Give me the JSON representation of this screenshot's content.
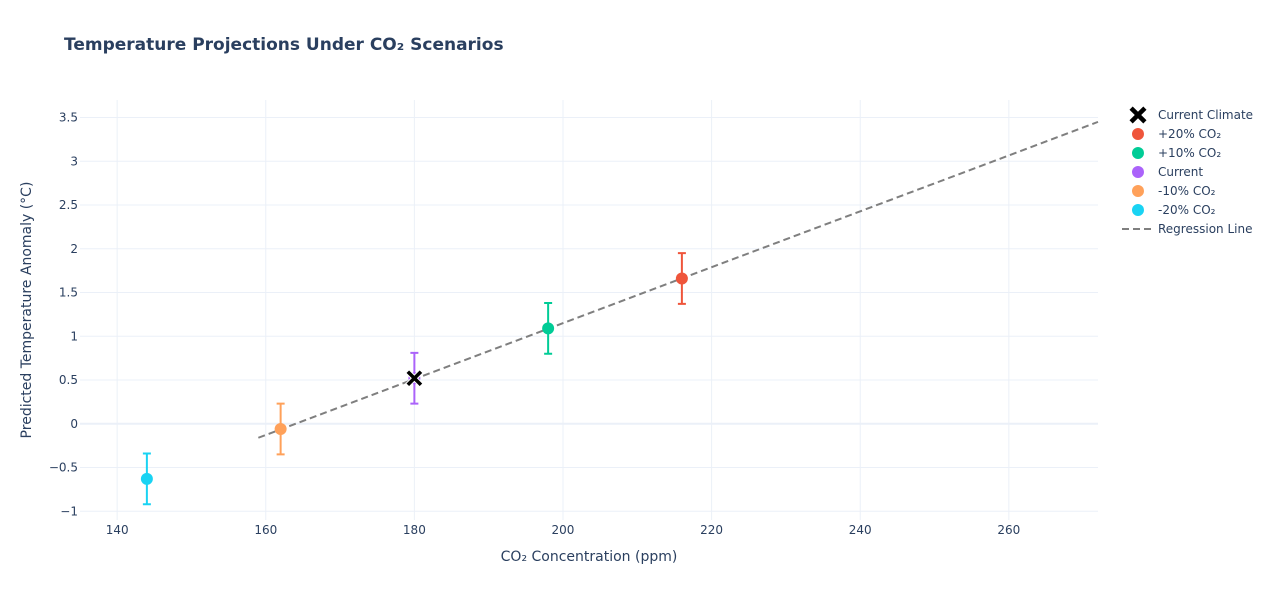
{
  "chart_data": {
    "type": "scatter",
    "title": "Temperature Projections Under CO₂ Scenarios",
    "xlabel": "CO₂ Concentration (ppm)",
    "ylabel": "Predicted Temperature Anomaly (°C)",
    "xlim": [
      135,
      272
    ],
    "ylim": [
      -1.1,
      3.7
    ],
    "x_ticks": [
      140,
      160,
      180,
      200,
      220,
      240,
      260
    ],
    "y_ticks": [
      -1,
      -0.5,
      0,
      0.5,
      1,
      1.5,
      2,
      2.5,
      3,
      3.5
    ],
    "x_tick_labels": [
      "140",
      "160",
      "180",
      "200",
      "220",
      "240",
      "260"
    ],
    "y_tick_labels": [
      "−1",
      "−0.5",
      "0",
      "0.5",
      "1",
      "1.5",
      "2",
      "2.5",
      "3",
      "3.5"
    ],
    "grid": true,
    "legend_position": "top-right",
    "series": [
      {
        "name": "Current Climate",
        "marker": "x",
        "color": "#000000",
        "x": [
          180
        ],
        "y": [
          0.52
        ]
      },
      {
        "name": "+20% CO₂",
        "marker": "circle",
        "color": "#EF553B",
        "x": [
          216
        ],
        "y": [
          1.66
        ],
        "error_y": [
          0.29
        ]
      },
      {
        "name": "+10% CO₂",
        "marker": "circle",
        "color": "#00CC96",
        "x": [
          198
        ],
        "y": [
          1.09
        ],
        "error_y": [
          0.29
        ]
      },
      {
        "name": "Current",
        "marker": "circle",
        "color": "#AB63FA",
        "x": [
          180
        ],
        "y": [
          0.52
        ],
        "error_y": [
          0.29
        ]
      },
      {
        "name": "-10% CO₂",
        "marker": "circle",
        "color": "#FFA15A",
        "x": [
          162
        ],
        "y": [
          -0.06
        ],
        "error_y": [
          0.29
        ]
      },
      {
        "name": "-20% CO₂",
        "marker": "circle",
        "color": "#19D3F3",
        "x": [
          144
        ],
        "y": [
          -0.63
        ],
        "error_y": [
          0.29
        ]
      },
      {
        "name": "Regression Line",
        "marker": "dash-line",
        "color": "#7f7f7f",
        "x": [
          159,
          272
        ],
        "y": [
          -0.16,
          3.45
        ]
      }
    ]
  }
}
